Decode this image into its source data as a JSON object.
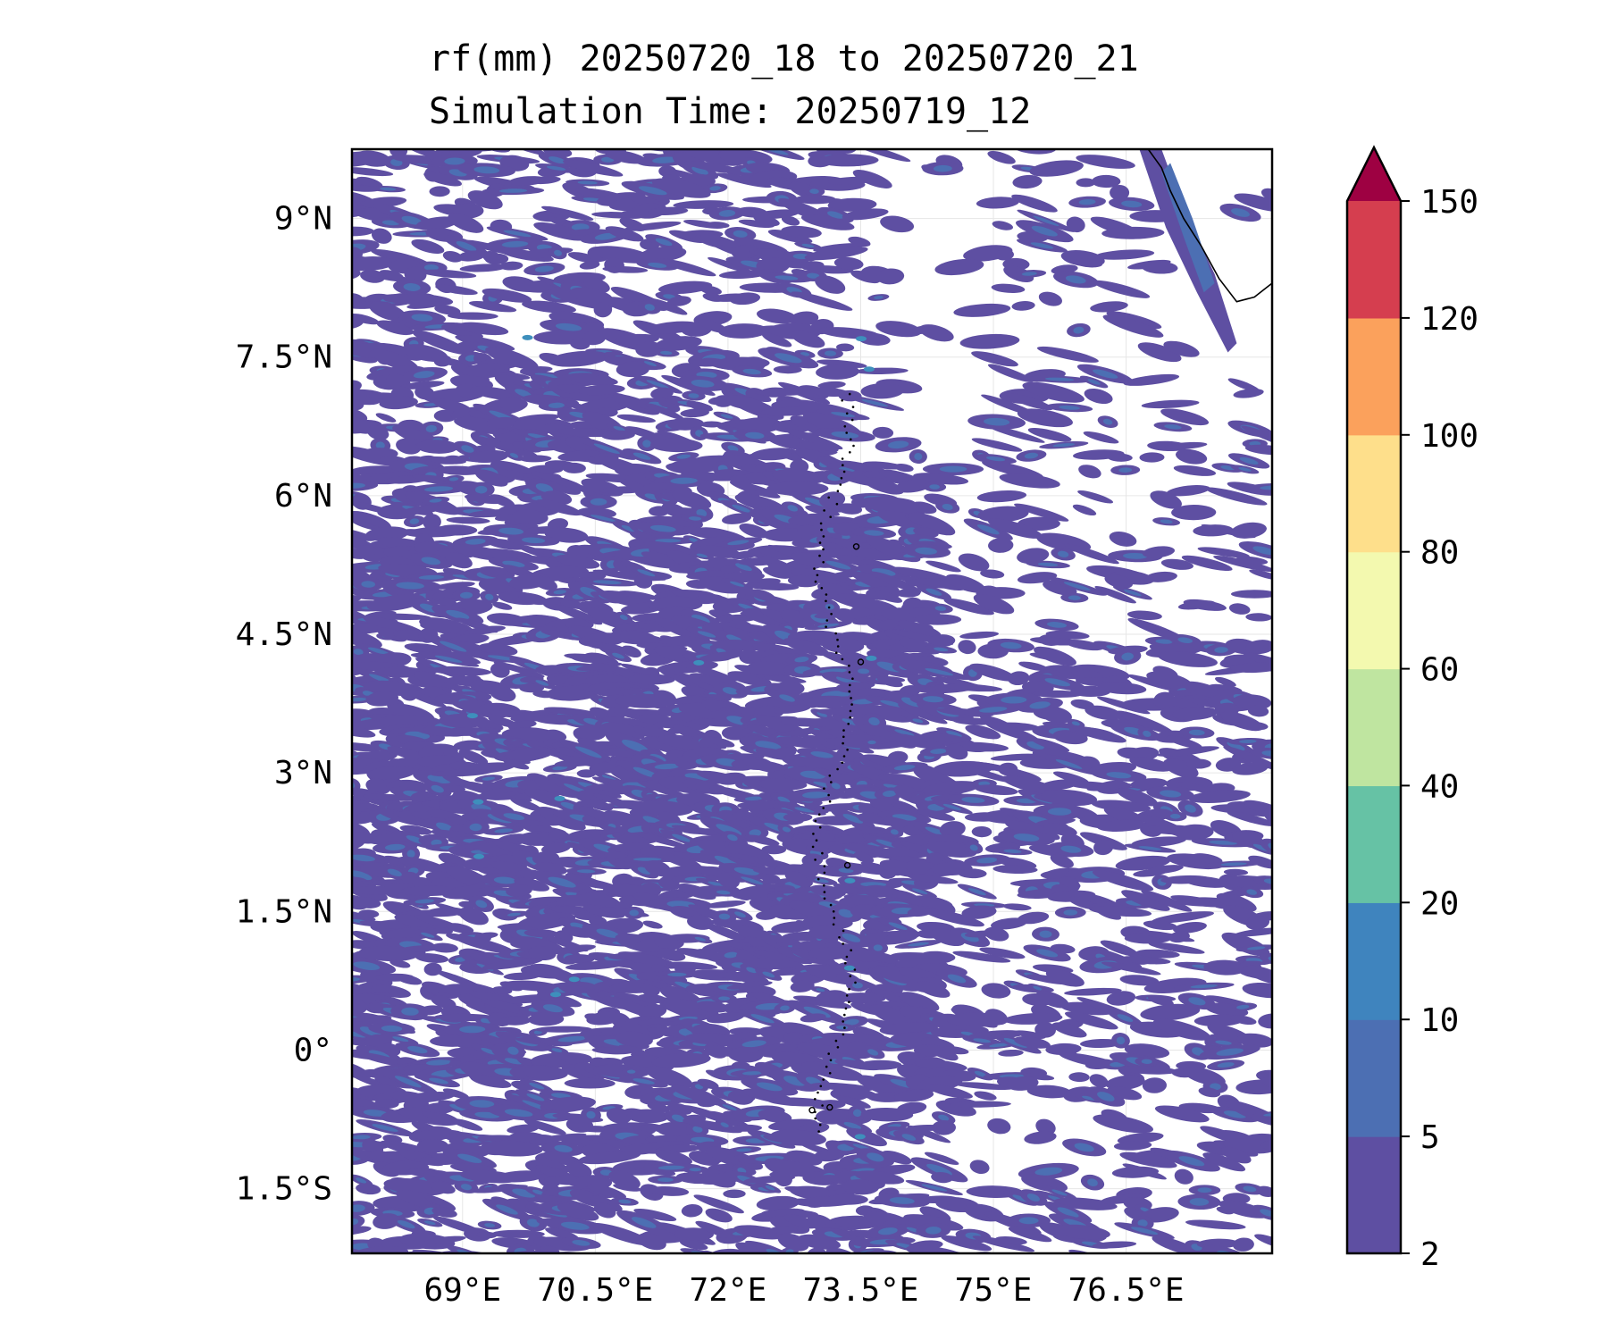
{
  "title_line1": "rf(mm) 20250720_18 to 20250720_21",
  "title_line2": "Simulation Time: 20250719_12",
  "map": {
    "lon_range": [
      67.75,
      78.15
    ],
    "lat_range": [
      -2.2,
      9.75
    ],
    "lon_ticks": [
      {
        "value": 69,
        "label": "69°E"
      },
      {
        "value": 70.5,
        "label": "70.5°E"
      },
      {
        "value": 72,
        "label": "72°E"
      },
      {
        "value": 73.5,
        "label": "73.5°E"
      },
      {
        "value": 75,
        "label": "75°E"
      },
      {
        "value": 76.5,
        "label": "76.5°E"
      }
    ],
    "lat_ticks": [
      {
        "value": 9,
        "label": "9°N"
      },
      {
        "value": 7.5,
        "label": "7.5°N"
      },
      {
        "value": 6,
        "label": "6°N"
      },
      {
        "value": 4.5,
        "label": "4.5°N"
      },
      {
        "value": 3,
        "label": "3°N"
      },
      {
        "value": 1.5,
        "label": "1.5°N"
      },
      {
        "value": 0,
        "label": "0°"
      },
      {
        "value": -1.5,
        "label": "1.5°S"
      }
    ],
    "gridlines": true,
    "rain_color_dominant": "#5e4fa2",
    "rain_color_secondary": "#4c6fb3",
    "rain_color_highlight": "#3e8fbc"
  },
  "colorbar": {
    "levels": [
      2,
      5,
      10,
      20,
      40,
      60,
      80,
      100,
      120,
      150
    ],
    "labels": [
      "2",
      "5",
      "10",
      "20",
      "40",
      "60",
      "80",
      "100",
      "120",
      "150"
    ],
    "colors": [
      "#5e4fa2",
      "#4c6fb3",
      "#3f84be",
      "#66c2a5",
      "#bfe5a0",
      "#f3f9af",
      "#fedf8b",
      "#fba15c",
      "#d53e4f"
    ],
    "extend_color": "#9e0142",
    "extend": "max"
  }
}
